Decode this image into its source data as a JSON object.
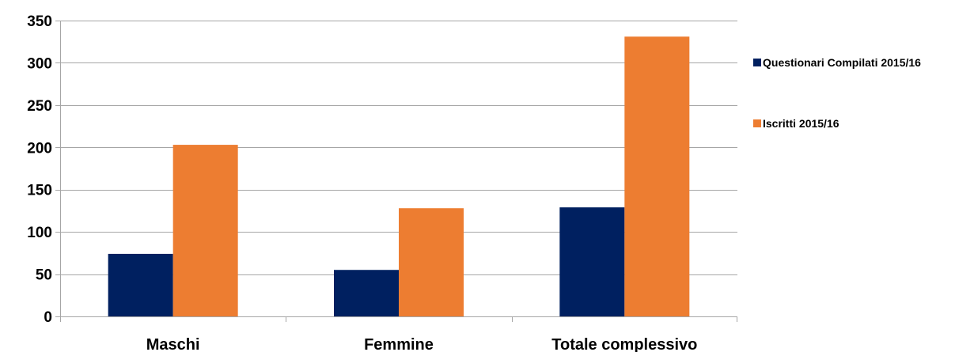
{
  "chart_data": {
    "type": "bar",
    "title": "",
    "xlabel": "",
    "ylabel": "",
    "categories": [
      "Maschi",
      "Femmine",
      "Totale complessivo"
    ],
    "series": [
      {
        "name": "Questionari Compilati 2015/16",
        "values": [
          74,
          55,
          129
        ],
        "color": "#002060"
      },
      {
        "name": "Iscritti 2015/16",
        "values": [
          203,
          128,
          331
        ],
        "color": "#ED7D31"
      }
    ],
    "ylim": [
      0,
      350
    ],
    "yticks": [
      0,
      50,
      100,
      150,
      200,
      250,
      300,
      350
    ],
    "grid": true,
    "legend_position": "right"
  }
}
